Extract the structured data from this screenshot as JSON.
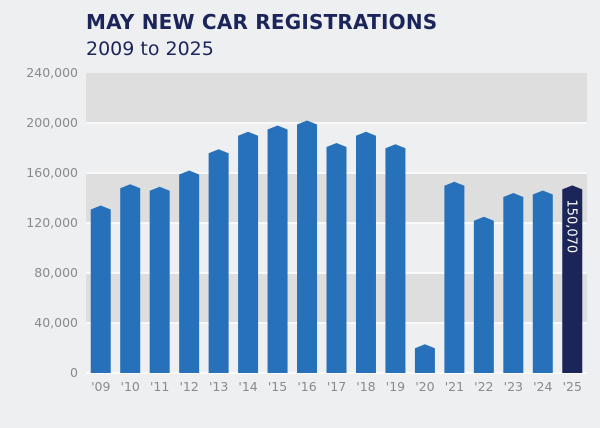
{
  "chart_data": {
    "type": "bar",
    "title": "MAY NEW CAR REGISTRATIONS",
    "subtitle": "2009 to 2025",
    "xlabel": "",
    "ylabel": "",
    "categories": [
      "'09",
      "'10",
      "'11",
      "'12",
      "'13",
      "'14",
      "'15",
      "'16",
      "'17",
      "'18",
      "'19",
      "'20",
      "'21",
      "'22",
      "'23",
      "'24",
      "'25"
    ],
    "values": [
      134000,
      151000,
      149000,
      162000,
      179000,
      193000,
      198000,
      202000,
      184000,
      193000,
      183000,
      23000,
      153000,
      125000,
      144000,
      146000,
      150070
    ],
    "ylim": [
      0,
      240000
    ],
    "yticks": [
      "0",
      "40,000",
      "80,000",
      "120,000",
      "160,000",
      "200,000",
      "240,000"
    ],
    "grid": "alternating horizontal bands",
    "legend": "none",
    "data_labels": [
      {
        "category": "'25",
        "text": "150,070"
      }
    ],
    "colors": {
      "bar": "#2671b9",
      "highlight": "#1b2559",
      "band_dark": "#dedede",
      "band_light": "#eeeff1",
      "title": "#1b2559",
      "tick": "#8a8a8a"
    }
  }
}
